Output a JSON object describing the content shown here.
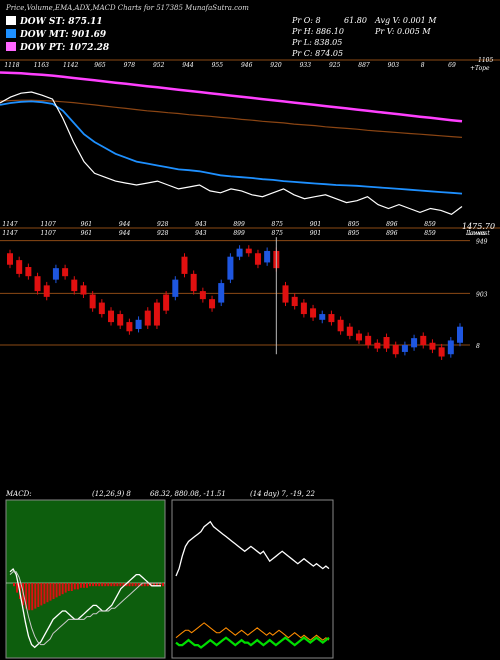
{
  "header": {
    "title": "Price,Volume,EMA,ADX,MACD Charts for 517385 MunafaSutra.com",
    "legend": [
      {
        "label": "DOW ST: 875.11",
        "color": "#ffffff"
      },
      {
        "label": "DOW MT: 901.69",
        "color": "#1e90ff"
      },
      {
        "label": "DOW PT: 1072.28",
        "color": "#ff66ff"
      }
    ],
    "stats": {
      "pr_o": "Pr  O: 8",
      "o_val": "61.80",
      "avg_v": "Avg V: 0.001 M",
      "pr_h": "Pr  H: 886.10",
      "pr_v": "Pr  V: 0.005 M",
      "pr_l": "Pr  L: 838.05",
      "pr_c": "Pr  C: 874.05"
    }
  },
  "colors": {
    "up": "#1e56e0",
    "down": "#e01010",
    "grid": "#8b4a14",
    "pink": "#ff40ff",
    "brown": "#8b4513",
    "blue": "#1e90ff",
    "white": "#ffffff",
    "green": "#00dd00",
    "orange": "#ff8c00",
    "macd_bg": "#0d5e0d"
  },
  "chart_data": [
    {
      "type": "line",
      "name": "ema-panel",
      "top_labels": [
        "1118",
        "1163",
        "1142",
        "965",
        "978",
        "952",
        "944",
        "955",
        "946",
        "920",
        "933",
        "925",
        "887",
        "903",
        "8",
        "69"
      ],
      "bottom_labels": [
        "1147",
        "1107",
        "961",
        "944",
        "928",
        "943",
        "899",
        "875",
        "901",
        "895",
        "896",
        "859"
      ],
      "right_top": "1105",
      "right_top_sub": "+Tope",
      "right_value": "1475.70",
      "right_bottom_sub": "Lowest",
      "ylim": [
        820,
        1250
      ],
      "series": [
        {
          "color": "pink",
          "values": [
            1218,
            1217,
            1216,
            1214,
            1212,
            1210,
            1207,
            1204,
            1201,
            1198,
            1195,
            1192,
            1189,
            1186,
            1183,
            1180,
            1177,
            1174,
            1171,
            1168,
            1165,
            1162,
            1159,
            1156,
            1153,
            1150,
            1147,
            1144,
            1141,
            1138,
            1135,
            1132,
            1129,
            1126,
            1123,
            1120,
            1117,
            1114,
            1111,
            1108,
            1105,
            1102,
            1099,
            1096,
            1093
          ]
        },
        {
          "color": "brown",
          "values": [
            1145,
            1146,
            1147,
            1147,
            1146,
            1145,
            1143,
            1141,
            1138,
            1135,
            1132,
            1129,
            1126,
            1123,
            1120,
            1118,
            1115,
            1113,
            1110,
            1108,
            1106,
            1103,
            1101,
            1098,
            1096,
            1093,
            1091,
            1089,
            1086,
            1084,
            1082,
            1079,
            1077,
            1075,
            1073,
            1070,
            1068,
            1066,
            1064,
            1062,
            1060,
            1058,
            1056,
            1054,
            1052
          ]
        },
        {
          "color": "blue",
          "values": [
            1135,
            1140,
            1143,
            1144,
            1142,
            1138,
            1120,
            1090,
            1060,
            1040,
            1025,
            1010,
            1000,
            990,
            985,
            980,
            975,
            970,
            968,
            965,
            960,
            955,
            952,
            950,
            948,
            945,
            943,
            940,
            938,
            936,
            934,
            932,
            930,
            929,
            928,
            926,
            924,
            922,
            920,
            918,
            916,
            914,
            912,
            910,
            908
          ]
        },
        {
          "color": "white",
          "values": [
            1140,
            1155,
            1165,
            1168,
            1160,
            1150,
            1100,
            1040,
            990,
            960,
            950,
            940,
            935,
            930,
            935,
            940,
            930,
            920,
            925,
            930,
            915,
            910,
            920,
            915,
            905,
            900,
            910,
            920,
            905,
            895,
            900,
            905,
            895,
            885,
            890,
            900,
            880,
            870,
            880,
            870,
            860,
            870,
            865,
            855,
            875
          ]
        }
      ]
    },
    {
      "type": "candlestick",
      "name": "price-panel",
      "top_labels": [
        "1147",
        "1107",
        "961",
        "944",
        "928",
        "943",
        "899",
        "875",
        "901",
        "895",
        "896",
        "859"
      ],
      "right_top_sub": "Lowes",
      "levels": [
        "949",
        "903",
        "8"
      ],
      "ylim": [
        838,
        960
      ],
      "candles": [
        {
          "o": 938,
          "c": 928
        },
        {
          "o": 932,
          "c": 920
        },
        {
          "o": 926,
          "c": 918
        },
        {
          "o": 918,
          "c": 905
        },
        {
          "o": 910,
          "c": 900
        },
        {
          "o": 915,
          "c": 925
        },
        {
          "o": 925,
          "c": 918
        },
        {
          "o": 915,
          "c": 905
        },
        {
          "o": 910,
          "c": 902
        },
        {
          "o": 902,
          "c": 890
        },
        {
          "o": 895,
          "c": 885
        },
        {
          "o": 888,
          "c": 878
        },
        {
          "o": 885,
          "c": 875
        },
        {
          "o": 878,
          "c": 870
        },
        {
          "o": 872,
          "c": 880
        },
        {
          "o": 888,
          "c": 875
        },
        {
          "o": 895,
          "c": 875
        },
        {
          "o": 902,
          "c": 888
        },
        {
          "o": 900,
          "c": 915
        },
        {
          "o": 935,
          "c": 920
        },
        {
          "o": 920,
          "c": 905
        },
        {
          "o": 905,
          "c": 898
        },
        {
          "o": 898,
          "c": 890
        },
        {
          "o": 895,
          "c": 912
        },
        {
          "o": 915,
          "c": 935
        },
        {
          "o": 935,
          "c": 942
        },
        {
          "o": 942,
          "c": 938
        },
        {
          "o": 938,
          "c": 928
        },
        {
          "o": 930,
          "c": 940
        },
        {
          "o": 940,
          "c": 925
        },
        {
          "o": 910,
          "c": 895
        },
        {
          "o": 900,
          "c": 892
        },
        {
          "o": 895,
          "c": 885
        },
        {
          "o": 890,
          "c": 882
        },
        {
          "o": 880,
          "c": 885
        },
        {
          "o": 885,
          "c": 878
        },
        {
          "o": 880,
          "c": 870
        },
        {
          "o": 874,
          "c": 866
        },
        {
          "o": 868,
          "c": 862
        },
        {
          "o": 866,
          "c": 858
        },
        {
          "o": 860,
          "c": 855
        },
        {
          "o": 865,
          "c": 855
        },
        {
          "o": 858,
          "c": 850
        },
        {
          "o": 852,
          "c": 858
        },
        {
          "o": 856,
          "c": 864
        },
        {
          "o": 866,
          "c": 858
        },
        {
          "o": 860,
          "c": 854
        },
        {
          "o": 856,
          "c": 848
        },
        {
          "o": 850,
          "c": 862
        },
        {
          "o": 860,
          "c": 874
        }
      ]
    },
    {
      "type": "bar",
      "name": "macd-panel",
      "label": "MACD:",
      "params": "(12,26,9) 8",
      "values_text": "68.32, 880.08, -11.51",
      "ylim": [
        -30,
        30
      ],
      "histogram": [
        2,
        6,
        10,
        14,
        16,
        17,
        17,
        16,
        15,
        14,
        13,
        12,
        11,
        10,
        9,
        8,
        7,
        6,
        5,
        5,
        4,
        4,
        3,
        3,
        3,
        2,
        2,
        2,
        2,
        2,
        2,
        2,
        2,
        2,
        2,
        2,
        2,
        2,
        2,
        2,
        2,
        2,
        2,
        2,
        2,
        2,
        2,
        2,
        2,
        2
      ],
      "macd": [
        4,
        5,
        3,
        -2,
        -8,
        -14,
        -19,
        -22,
        -23,
        -22,
        -21,
        -19,
        -17,
        -15,
        -13,
        -12,
        -11,
        -10,
        -10,
        -11,
        -12,
        -13,
        -13,
        -12,
        -11,
        -10,
        -9,
        -8,
        -8,
        -9,
        -10,
        -10,
        -9,
        -8,
        -6,
        -4,
        -2,
        -1,
        0,
        1,
        2,
        3,
        3,
        2,
        1,
        0,
        -1,
        -1,
        -1,
        -1
      ],
      "signal": [
        3,
        4,
        4,
        2,
        -2,
        -7,
        -12,
        -16,
        -19,
        -21,
        -22,
        -22,
        -21,
        -20,
        -18,
        -17,
        -16,
        -15,
        -14,
        -13,
        -13,
        -13,
        -13,
        -13,
        -13,
        -12,
        -12,
        -11,
        -11,
        -10,
        -10,
        -10,
        -10,
        -9,
        -9,
        -8,
        -7,
        -6,
        -5,
        -4,
        -3,
        -2,
        -1,
        0,
        0,
        0,
        0,
        0,
        0,
        0
      ]
    },
    {
      "type": "line",
      "name": "adx-panel",
      "label": "(14 day) 7, -19, 22",
      "ylim": [
        0,
        60
      ],
      "series": [
        {
          "color": "white",
          "values": [
            30,
            33,
            38,
            42,
            44,
            45,
            46,
            47,
            48,
            50,
            51,
            52,
            50,
            49,
            48,
            47,
            46,
            45,
            44,
            43,
            42,
            41,
            40,
            41,
            42,
            41,
            40,
            39,
            40,
            38,
            36,
            37,
            38,
            39,
            40,
            39,
            38,
            37,
            36,
            35,
            36,
            37,
            36,
            35,
            34,
            35,
            34,
            33,
            34,
            33
          ]
        },
        {
          "color": "orange",
          "values": [
            5,
            6,
            7,
            8,
            8,
            7,
            8,
            9,
            10,
            11,
            10,
            9,
            8,
            7,
            7,
            8,
            9,
            8,
            7,
            6,
            7,
            8,
            7,
            6,
            7,
            8,
            9,
            8,
            7,
            6,
            7,
            6,
            7,
            8,
            7,
            6,
            5,
            6,
            7,
            6,
            5,
            6,
            5,
            4,
            5,
            6,
            5,
            4,
            5,
            4
          ]
        },
        {
          "color": "green",
          "values": [
            3,
            2,
            2,
            3,
            4,
            3,
            2,
            2,
            1,
            2,
            3,
            4,
            3,
            2,
            3,
            4,
            5,
            4,
            3,
            2,
            3,
            4,
            3,
            3,
            2,
            3,
            4,
            3,
            2,
            3,
            4,
            3,
            2,
            3,
            4,
            5,
            4,
            3,
            2,
            3,
            4,
            5,
            4,
            3,
            4,
            5,
            4,
            3,
            4,
            5
          ]
        }
      ]
    }
  ]
}
